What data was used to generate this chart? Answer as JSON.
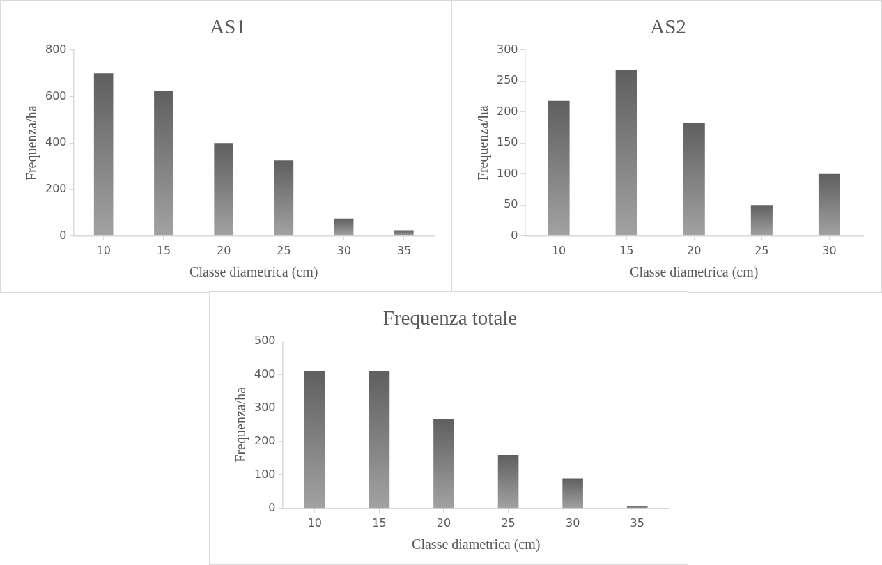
{
  "chart_data": [
    {
      "type": "bar",
      "title": "AS1",
      "xlabel": "Classe diametrica (cm)",
      "ylabel": "Frequenza/ha",
      "categories": [
        "10",
        "15",
        "20",
        "25",
        "30",
        "35"
      ],
      "values": [
        700,
        625,
        400,
        325,
        75,
        25
      ],
      "color": "#5f5f5f",
      "ylim": [
        0,
        800
      ],
      "yticks": [
        0,
        200,
        400,
        600,
        800
      ],
      "grid": false,
      "legend": false
    },
    {
      "type": "bar",
      "title": "AS2",
      "xlabel": "Classe diametrica (cm)",
      "ylabel": "Frequenza/ha",
      "categories": [
        "10",
        "15",
        "20",
        "25",
        "30"
      ],
      "values": [
        218,
        268,
        183,
        50,
        100
      ],
      "color": "#5f5f5f",
      "ylim": [
        0,
        300
      ],
      "yticks": [
        0,
        50,
        100,
        150,
        200,
        250,
        300
      ],
      "grid": false,
      "legend": false
    },
    {
      "type": "bar",
      "title": "Frequenza totale",
      "xlabel": "Classe diametrica (cm)",
      "ylabel": "Frequenza/ha",
      "categories": [
        "10",
        "15",
        "20",
        "25",
        "30",
        "35"
      ],
      "values": [
        411,
        411,
        268,
        160,
        90,
        7
      ],
      "color": "#5f5f5f",
      "ylim": [
        0,
        500
      ],
      "yticks": [
        0,
        100,
        200,
        300,
        400,
        500
      ],
      "grid": false,
      "legend": false
    }
  ]
}
